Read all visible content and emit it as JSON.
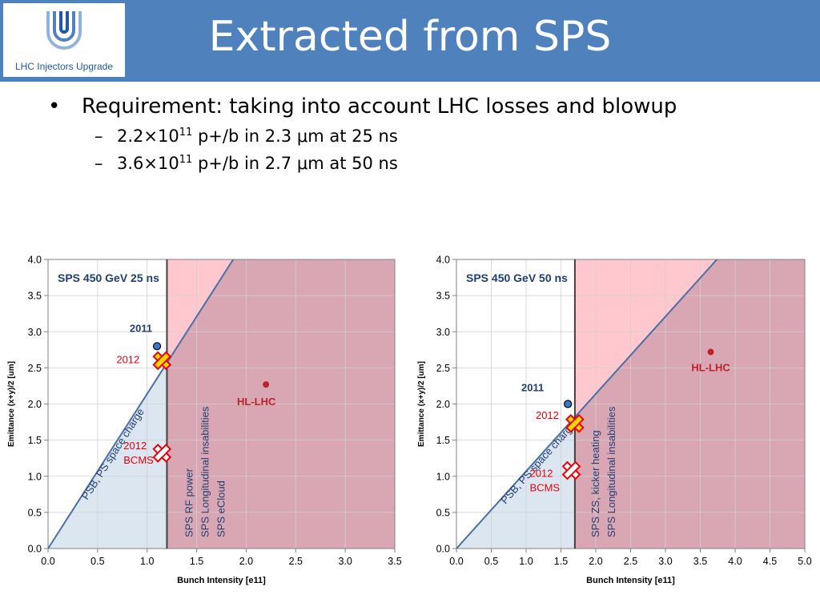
{
  "header": {
    "logo_text": "LHC Injectors Upgrade",
    "title": "Extracted from SPS",
    "bar_color": "#4f81bd"
  },
  "bullets": {
    "main": "Requirement: taking into account LHC losses and blowup",
    "sub": [
      {
        "pre": "2.2×10",
        "sup": "11",
        "post": " p+/b in 2.3 μm at 25 ns"
      },
      {
        "pre": "3.6×10",
        "sup": "11",
        "post": " p+/b in 2.7 μm at 50 ns"
      }
    ]
  },
  "chart_data": [
    {
      "type": "scatter",
      "title": "SPS 450  GeV 25 ns",
      "xlabel": "Bunch Intensity [e11]",
      "ylabel": "Emittance (x+y)/2 [um]",
      "xlim": [
        0,
        3.5
      ],
      "ylim": [
        0,
        4
      ],
      "xticks": [
        "0.0",
        "0.5",
        "1.0",
        "1.5",
        "2.0",
        "2.5",
        "3.0",
        "3.5"
      ],
      "yticks": [
        "0.0",
        "0.5",
        "1.0",
        "1.5",
        "2.0",
        "2.5",
        "3.0",
        "3.5",
        "4.0"
      ],
      "grid": true,
      "space_charge_line": {
        "label": "PSB, PS space charge",
        "slope": 2.14
      },
      "limit_x": 1.2,
      "limit_labels": [
        "SPS RF power",
        "SPS Longitudinal insabilities",
        "SPS eCloud"
      ],
      "points": [
        {
          "label": "2011",
          "x": 1.1,
          "y": 2.8,
          "marker": "dot",
          "color": "#1f5aa0"
        },
        {
          "label": "2012",
          "x": 1.15,
          "y": 2.6,
          "marker": "x-yellow",
          "color": "#e8000b"
        },
        {
          "label": "2012\nBCMS",
          "x": 1.15,
          "y": 1.32,
          "marker": "x-white",
          "color": "#e8000b"
        },
        {
          "label": "HL-LHC",
          "x": 2.2,
          "y": 2.27,
          "marker": "dot",
          "color": "#c0202a"
        }
      ]
    },
    {
      "type": "scatter",
      "title": "SPS 450  GeV 50 ns",
      "xlabel": "Bunch Intensity [e11]",
      "ylabel": "Emittance (x+y)/2 [um]",
      "xlim": [
        0,
        5
      ],
      "ylim": [
        0,
        4
      ],
      "xticks": [
        "0.0",
        "0.5",
        "1.0",
        "1.5",
        "2.0",
        "2.5",
        "3.0",
        "3.5",
        "4.0",
        "4.5",
        "5.0"
      ],
      "yticks": [
        "0.0",
        "0.5",
        "1.0",
        "1.5",
        "2.0",
        "2.5",
        "3.0",
        "3.5",
        "4.0"
      ],
      "grid": true,
      "space_charge_line": {
        "label": "PSB, PS space charge",
        "slope": 1.07
      },
      "limit_x": 1.7,
      "limit_labels": [
        "SPS ZS, kicker heating",
        "SPS Longitudinal insabilities"
      ],
      "points": [
        {
          "label": "2011",
          "x": 1.6,
          "y": 2.0,
          "marker": "dot",
          "color": "#1f5aa0"
        },
        {
          "label": "2012",
          "x": 1.7,
          "y": 1.73,
          "marker": "x-yellow",
          "color": "#e8000b"
        },
        {
          "label": "2012\nBCMS",
          "x": 1.65,
          "y": 1.08,
          "marker": "x-white",
          "color": "#e8000b"
        },
        {
          "label": "HL-LHC",
          "x": 3.65,
          "y": 2.72,
          "marker": "dot",
          "color": "#c0202a"
        }
      ]
    }
  ],
  "colors": {
    "region_pink": "#ffc7ce",
    "region_mauve": "#d9a7b4",
    "region_blue": "#dce6f1",
    "line_blue": "#4a6fa5",
    "label_blue": "#1f3f73",
    "hl_red": "#c0202a"
  }
}
